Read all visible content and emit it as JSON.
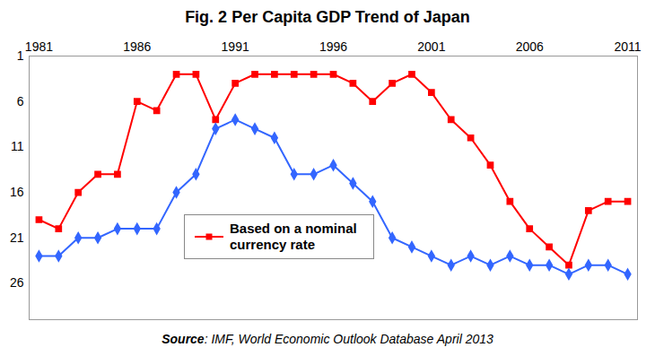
{
  "chart_data": {
    "type": "line",
    "title": "Fig. 2 Per Capita GDP Trend of Japan",
    "caption": "Source: IMF, World Economic Outlook Database April 2013",
    "x": [
      1981,
      1982,
      1983,
      1984,
      1985,
      1986,
      1987,
      1988,
      1989,
      1990,
      1991,
      1992,
      1993,
      1994,
      1995,
      1996,
      1997,
      1998,
      1999,
      2000,
      2001,
      2002,
      2003,
      2004,
      2005,
      2006,
      2007,
      2008,
      2009,
      2010,
      2011
    ],
    "series": [
      {
        "name": "Based on a nominal currency rate",
        "color": "#ff0000",
        "marker": "square",
        "values": [
          19,
          20,
          16,
          14,
          14,
          6,
          7,
          3,
          3,
          8,
          4,
          3,
          3,
          3,
          3,
          3,
          4,
          6,
          4,
          3,
          5,
          8,
          10,
          13,
          17,
          20,
          22,
          24,
          18,
          17,
          17
        ]
      },
      {
        "color": "#3366ff",
        "marker": "diamond",
        "values": [
          23,
          23,
          21,
          21,
          20,
          20,
          20,
          16,
          14,
          9,
          8,
          9,
          10,
          14,
          14,
          13,
          15,
          17,
          21,
          22,
          23,
          24,
          23,
          24,
          23,
          24,
          24,
          25,
          24,
          24,
          25
        ]
      }
    ],
    "xlim": [
      1980.5,
      2011.5
    ],
    "xticks": [
      1981,
      1986,
      1991,
      1996,
      2001,
      2006,
      2011
    ],
    "ylim": [
      30,
      1
    ],
    "yticks": [
      1,
      6,
      11,
      16,
      21,
      26
    ],
    "grid": false,
    "legend": "lower left"
  }
}
